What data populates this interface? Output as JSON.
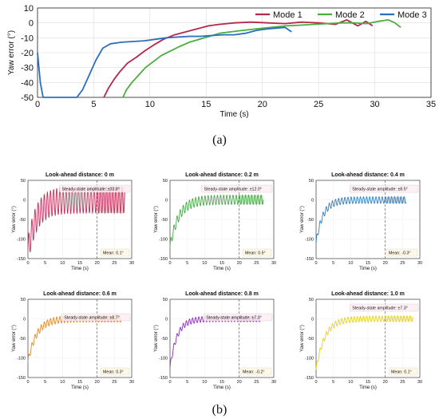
{
  "figure": {
    "caption_a": "(a)",
    "caption_b": "(b)"
  },
  "chart_data": [
    {
      "type": "line",
      "panel": "a",
      "title": "",
      "xlabel": "Time (s)",
      "ylabel": "Yaw error (°)",
      "xlim": [
        0,
        35
      ],
      "ylim": [
        -50,
        10
      ],
      "xticks": [
        0,
        5,
        10,
        15,
        20,
        25,
        30,
        35
      ],
      "yticks": [
        10,
        0,
        -10,
        -20,
        -30,
        -40,
        -50
      ],
      "grid": true,
      "legend_position": "top-right",
      "series": [
        {
          "name": "Mode 1",
          "color": "#b5284a",
          "x": [
            5.9,
            6.3,
            6.8,
            7.3,
            8.0,
            8.8,
            9.5,
            10.3,
            11.2,
            12.2,
            13.2,
            14.2,
            15.2,
            16.2,
            17.5,
            19.0,
            20.5,
            22.0,
            23.5,
            25.0,
            26.5,
            27.5,
            28.5,
            29.2,
            29.8
          ],
          "values": [
            -50,
            -44,
            -38,
            -33,
            -27,
            -23,
            -19,
            -15,
            -11,
            -8,
            -6,
            -4,
            -2,
            -1,
            0,
            0.5,
            0,
            -0.5,
            0.5,
            0,
            -1,
            2,
            -2,
            1,
            -2
          ]
        },
        {
          "name": "Mode 2",
          "color": "#4aad3e",
          "x": [
            7.6,
            7.9,
            8.4,
            9.0,
            9.6,
            10.3,
            11.0,
            11.8,
            12.6,
            13.5,
            14.4,
            15.3,
            16.2,
            17.2,
            18.3,
            19.5,
            20.8,
            22.1,
            23.4,
            24.6,
            25.8,
            27.0,
            28.2,
            29.3,
            30.3,
            31.2,
            31.8,
            32.3
          ],
          "values": [
            -50,
            -45,
            -40,
            -35,
            -30,
            -26,
            -22,
            -19,
            -16,
            -13,
            -11,
            -9,
            -7,
            -6,
            -5,
            -4,
            -3,
            -2,
            -1.5,
            -1,
            -0.5,
            0,
            0,
            -0.5,
            1,
            2,
            0,
            -3
          ]
        },
        {
          "name": "Mode 3",
          "color": "#2a6ec0",
          "x": [
            0,
            0.25,
            0.5,
            0.9,
            1.5,
            2.5,
            3.5,
            4.0,
            4.6,
            5.2,
            5.8,
            6.5,
            7.5,
            8.5,
            9.5,
            10.5,
            11.5,
            12.5,
            13.5,
            14.5,
            15.5,
            16.5,
            17.5,
            18.5,
            19.5,
            20.5,
            21.3,
            22.0,
            22.6
          ],
          "values": [
            -20,
            -40,
            -50,
            -50,
            -50,
            -50,
            -50,
            -45,
            -35,
            -25,
            -17,
            -14,
            -13,
            -12.5,
            -12,
            -11,
            -10,
            -9.5,
            -9,
            -9,
            -8.5,
            -8,
            -8,
            -7,
            -5,
            -4,
            -3.5,
            -3,
            -6
          ]
        }
      ]
    },
    {
      "type": "line",
      "panel": "b",
      "title": "Look-ahead distance: 0 m",
      "xlabel": "Time (s)",
      "ylabel": "Yaw error (°)",
      "xlim": [
        0,
        30
      ],
      "ylim": [
        -150,
        50
      ],
      "xticks": [
        0,
        5,
        10,
        15,
        20,
        25,
        30
      ],
      "yticks": [
        50,
        0,
        -50,
        -100,
        -150
      ],
      "color": "#c0305a",
      "t_start": 0,
      "t_end": 28,
      "initial_value": -130,
      "mean_value": 0.1,
      "amplitude": 33.8,
      "time_constant": 2.5,
      "oscillation_period": 0.9,
      "steady_state_from": 20,
      "steady_state_label": "Steady-state amplitude: ±33.8°",
      "mean_label": "Mean: 0.1°"
    },
    {
      "type": "line",
      "panel": "b",
      "title": "Look-ahead distance: 0.2 m",
      "xlabel": "Time (s)",
      "ylabel": "Yaw error (°)",
      "xlim": [
        0,
        30
      ],
      "ylim": [
        -150,
        50
      ],
      "xticks": [
        0,
        5,
        10,
        15,
        20,
        25,
        30
      ],
      "yticks": [
        50,
        0,
        -50,
        -100,
        -150
      ],
      "color": "#4aa84a",
      "t_start": 0,
      "t_end": 27,
      "initial_value": -120,
      "mean_value": 0.5,
      "amplitude": 12.0,
      "time_constant": 2.5,
      "oscillation_period": 0.9,
      "steady_state_from": 20,
      "steady_state_label": "Steady-state amplitude: ±12.0°",
      "mean_label": "Mean: 0.5°"
    },
    {
      "type": "line",
      "panel": "b",
      "title": "Look-ahead distance: 0.4 m",
      "xlabel": "Time (s)",
      "ylabel": "Yaw error (°)",
      "xlim": [
        0,
        30
      ],
      "ylim": [
        -150,
        50
      ],
      "xticks": [
        0,
        5,
        10,
        15,
        20,
        25,
        30
      ],
      "yticks": [
        50,
        0,
        -50,
        -100,
        -150
      ],
      "color": "#2f7fc4",
      "t_start": 0,
      "t_end": 26,
      "initial_value": -110,
      "mean_value": -0.3,
      "amplitude": 8.5,
      "time_constant": 2.0,
      "oscillation_period": 0.9,
      "steady_state_from": 20,
      "steady_state_label": "Steady-state amplitude: ±8.5°",
      "mean_label": "Mean: -0.3°"
    },
    {
      "type": "line",
      "panel": "b",
      "title": "Look-ahead distance: 0.6 m",
      "xlabel": "Time (s)",
      "ylabel": "Yaw error (°)",
      "xlim": [
        0,
        30
      ],
      "ylim": [
        -150,
        50
      ],
      "xticks": [
        0,
        5,
        10,
        15,
        20,
        25,
        30
      ],
      "yticks": [
        50,
        0,
        -50,
        -100,
        -150
      ],
      "color": "#e08a2c",
      "t_start": 0,
      "t_end": 27,
      "initial_value": -110,
      "mean_value": 0.3,
      "amplitude": 8.7,
      "time_constant": 2.5,
      "oscillation_period": 0.9,
      "steady_state_from": 20,
      "steady_state_label": "Steady-state amplitude: ±8.7°",
      "mean_label": "Mean: 0.3°"
    },
    {
      "type": "line",
      "panel": "b",
      "title": "Look-ahead distance: 0.8 m",
      "xlabel": "Time (s)",
      "ylabel": "Yaw error (°)",
      "xlim": [
        0,
        30
      ],
      "ylim": [
        -150,
        50
      ],
      "xticks": [
        0,
        5,
        10,
        15,
        20,
        25,
        30
      ],
      "yticks": [
        50,
        0,
        -50,
        -100,
        -150
      ],
      "color": "#8a2fb8",
      "t_start": 0,
      "t_end": 26,
      "initial_value": -125,
      "mean_value": -0.2,
      "amplitude": 7.3,
      "time_constant": 2.0,
      "oscillation_period": 0.9,
      "steady_state_from": 20,
      "steady_state_label": "Steady-state amplitude: ±7.3°",
      "mean_label": "Mean: -0.2°"
    },
    {
      "type": "line",
      "panel": "b",
      "title": "Look-ahead distance: 1.0 m",
      "xlabel": "Time (s)",
      "ylabel": "Yaw error (°)",
      "xlim": [
        0,
        30
      ],
      "ylim": [
        -150,
        50
      ],
      "xticks": [
        0,
        5,
        10,
        15,
        20,
        25,
        30
      ],
      "yticks": [
        50,
        0,
        -50,
        -100,
        -150
      ],
      "color": "#e6d21e",
      "t_start": 0,
      "t_end": 28,
      "initial_value": -130,
      "mean_value": 0.1,
      "amplitude": 7.3,
      "time_constant": 2.5,
      "oscillation_period": 0.9,
      "steady_state_from": 20,
      "steady_state_label": "Steady-state amplitude: ±7.3°",
      "mean_label": "Mean: 0.1°"
    }
  ]
}
